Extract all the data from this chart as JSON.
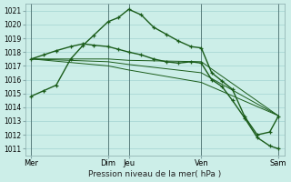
{
  "xlabel": "Pression niveau de la mer( hPa )",
  "ylim": [
    1010.5,
    1021.5
  ],
  "yticks": [
    1011,
    1012,
    1013,
    1014,
    1015,
    1016,
    1017,
    1018,
    1019,
    1020,
    1021
  ],
  "bg_color": "#cceee8",
  "grid_color": "#99cccc",
  "line_color": "#1a5c1a",
  "xlim": [
    0,
    12.5
  ],
  "xtick_positions": [
    0.3,
    4.0,
    5.0,
    8.5,
    12.2
  ],
  "xtick_labels": [
    "Mer",
    "Dim",
    "Jeu",
    "Ven",
    "Sam"
  ],
  "vline_positions": [
    0.3,
    4.0,
    5.0,
    8.5,
    12.2
  ],
  "vline_color": "#446666",
  "lines": [
    {
      "x": [
        0.3,
        0.9,
        1.5,
        2.2,
        2.8,
        3.3,
        4.0,
        4.5,
        5.0,
        5.6,
        6.2,
        6.8,
        7.4,
        8.0,
        8.5,
        9.0,
        9.5,
        10.0,
        10.6,
        11.2,
        11.8,
        12.2
      ],
      "y": [
        1014.8,
        1015.2,
        1015.6,
        1017.5,
        1018.5,
        1019.2,
        1020.2,
        1020.5,
        1021.1,
        1020.7,
        1019.8,
        1019.3,
        1018.8,
        1018.4,
        1018.3,
        1016.5,
        1015.9,
        1015.3,
        1013.3,
        1012.0,
        1012.2,
        1013.3
      ],
      "marker": true,
      "lw": 1.0
    },
    {
      "x": [
        0.3,
        0.9,
        1.5,
        2.2,
        2.8,
        3.3,
        4.0,
        4.5,
        5.0,
        5.6,
        6.2,
        6.8,
        7.4,
        8.0,
        8.5,
        9.0,
        9.5,
        10.0,
        10.6,
        11.2,
        11.8,
        12.2
      ],
      "y": [
        1017.5,
        1017.8,
        1018.1,
        1018.4,
        1018.6,
        1018.5,
        1018.4,
        1018.2,
        1018.0,
        1017.8,
        1017.5,
        1017.3,
        1017.2,
        1017.3,
        1017.2,
        1016.0,
        1015.5,
        1014.5,
        1013.2,
        1011.8,
        1011.2,
        1011.0
      ],
      "marker": true,
      "lw": 1.0
    },
    {
      "x": [
        0.3,
        4.0,
        5.0,
        8.5,
        12.2
      ],
      "y": [
        1017.5,
        1017.5,
        1017.4,
        1017.3,
        1013.4
      ],
      "marker": false,
      "lw": 0.7
    },
    {
      "x": [
        0.3,
        4.0,
        5.0,
        8.5,
        12.2
      ],
      "y": [
        1017.5,
        1017.3,
        1017.1,
        1016.5,
        1013.4
      ],
      "marker": false,
      "lw": 0.7
    },
    {
      "x": [
        0.3,
        4.0,
        5.0,
        8.5,
        12.2
      ],
      "y": [
        1017.5,
        1017.0,
        1016.7,
        1015.8,
        1013.4
      ],
      "marker": false,
      "lw": 0.7
    }
  ]
}
